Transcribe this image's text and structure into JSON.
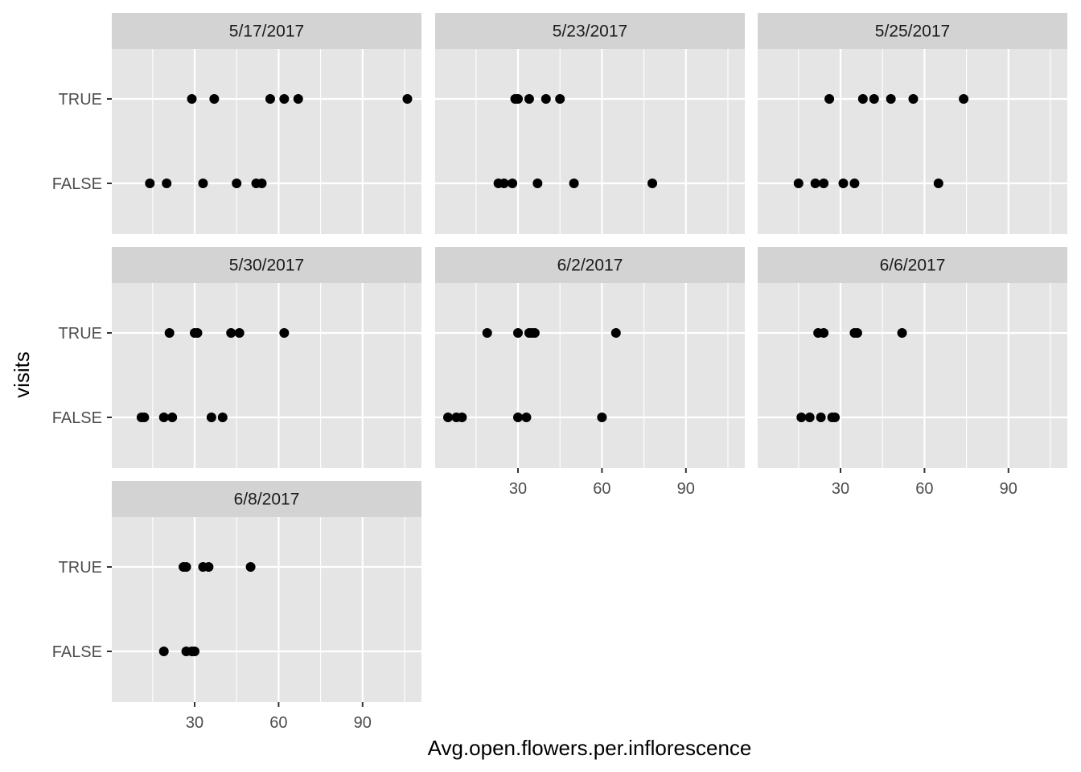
{
  "chart_data": {
    "type": "scatter",
    "facet_by": "date",
    "xlabel": "Avg.open.flowers.per.inflorescence",
    "ylabel": "visits",
    "xlim": [
      0,
      110
    ],
    "x_ticks": [
      30,
      60,
      90
    ],
    "y_categories": [
      "FALSE",
      "TRUE"
    ],
    "grid": true,
    "colors": {
      "panel_bg": "#e5e5e5",
      "strip_bg": "#d3d3d3",
      "grid": "#ffffff",
      "point": "#000000"
    },
    "panels": [
      {
        "title": "5/17/2017",
        "points": [
          {
            "x": 29,
            "y": "TRUE"
          },
          {
            "x": 37,
            "y": "TRUE"
          },
          {
            "x": 57,
            "y": "TRUE"
          },
          {
            "x": 62,
            "y": "TRUE"
          },
          {
            "x": 67,
            "y": "TRUE"
          },
          {
            "x": 106,
            "y": "TRUE"
          },
          {
            "x": 14,
            "y": "FALSE"
          },
          {
            "x": 20,
            "y": "FALSE"
          },
          {
            "x": 33,
            "y": "FALSE"
          },
          {
            "x": 45,
            "y": "FALSE"
          },
          {
            "x": 52,
            "y": "FALSE"
          },
          {
            "x": 54,
            "y": "FALSE"
          }
        ]
      },
      {
        "title": "5/23/2017",
        "points": [
          {
            "x": 29,
            "y": "TRUE"
          },
          {
            "x": 30,
            "y": "TRUE"
          },
          {
            "x": 34,
            "y": "TRUE"
          },
          {
            "x": 40,
            "y": "TRUE"
          },
          {
            "x": 45,
            "y": "TRUE"
          },
          {
            "x": 23,
            "y": "FALSE"
          },
          {
            "x": 25,
            "y": "FALSE"
          },
          {
            "x": 28,
            "y": "FALSE"
          },
          {
            "x": 37,
            "y": "FALSE"
          },
          {
            "x": 50,
            "y": "FALSE"
          },
          {
            "x": 78,
            "y": "FALSE"
          }
        ]
      },
      {
        "title": "5/25/2017",
        "points": [
          {
            "x": 26,
            "y": "TRUE"
          },
          {
            "x": 38,
            "y": "TRUE"
          },
          {
            "x": 42,
            "y": "TRUE"
          },
          {
            "x": 48,
            "y": "TRUE"
          },
          {
            "x": 56,
            "y": "TRUE"
          },
          {
            "x": 74,
            "y": "TRUE"
          },
          {
            "x": 15,
            "y": "FALSE"
          },
          {
            "x": 21,
            "y": "FALSE"
          },
          {
            "x": 24,
            "y": "FALSE"
          },
          {
            "x": 31,
            "y": "FALSE"
          },
          {
            "x": 35,
            "y": "FALSE"
          },
          {
            "x": 65,
            "y": "FALSE"
          }
        ]
      },
      {
        "title": "5/30/2017",
        "points": [
          {
            "x": 21,
            "y": "TRUE"
          },
          {
            "x": 30,
            "y": "TRUE"
          },
          {
            "x": 31,
            "y": "TRUE"
          },
          {
            "x": 43,
            "y": "TRUE"
          },
          {
            "x": 46,
            "y": "TRUE"
          },
          {
            "x": 62,
            "y": "TRUE"
          },
          {
            "x": 11,
            "y": "FALSE"
          },
          {
            "x": 12,
            "y": "FALSE"
          },
          {
            "x": 19,
            "y": "FALSE"
          },
          {
            "x": 22,
            "y": "FALSE"
          },
          {
            "x": 36,
            "y": "FALSE"
          },
          {
            "x": 40,
            "y": "FALSE"
          }
        ]
      },
      {
        "title": "6/2/2017",
        "points": [
          {
            "x": 19,
            "y": "TRUE"
          },
          {
            "x": 30,
            "y": "TRUE"
          },
          {
            "x": 34,
            "y": "TRUE"
          },
          {
            "x": 35,
            "y": "TRUE"
          },
          {
            "x": 36,
            "y": "TRUE"
          },
          {
            "x": 65,
            "y": "TRUE"
          },
          {
            "x": 5,
            "y": "FALSE"
          },
          {
            "x": 8,
            "y": "FALSE"
          },
          {
            "x": 10,
            "y": "FALSE"
          },
          {
            "x": 30,
            "y": "FALSE"
          },
          {
            "x": 33,
            "y": "FALSE"
          },
          {
            "x": 60,
            "y": "FALSE"
          }
        ]
      },
      {
        "title": "6/6/2017",
        "points": [
          {
            "x": 22,
            "y": "TRUE"
          },
          {
            "x": 24,
            "y": "TRUE"
          },
          {
            "x": 35,
            "y": "TRUE"
          },
          {
            "x": 36,
            "y": "TRUE"
          },
          {
            "x": 52,
            "y": "TRUE"
          },
          {
            "x": 16,
            "y": "FALSE"
          },
          {
            "x": 19,
            "y": "FALSE"
          },
          {
            "x": 23,
            "y": "FALSE"
          },
          {
            "x": 27,
            "y": "FALSE"
          },
          {
            "x": 28,
            "y": "FALSE"
          }
        ]
      },
      {
        "title": "6/8/2017",
        "points": [
          {
            "x": 26,
            "y": "TRUE"
          },
          {
            "x": 27,
            "y": "TRUE"
          },
          {
            "x": 33,
            "y": "TRUE"
          },
          {
            "x": 35,
            "y": "TRUE"
          },
          {
            "x": 50,
            "y": "TRUE"
          },
          {
            "x": 19,
            "y": "FALSE"
          },
          {
            "x": 27,
            "y": "FALSE"
          },
          {
            "x": 29,
            "y": "FALSE"
          },
          {
            "x": 30,
            "y": "FALSE"
          }
        ]
      }
    ]
  }
}
